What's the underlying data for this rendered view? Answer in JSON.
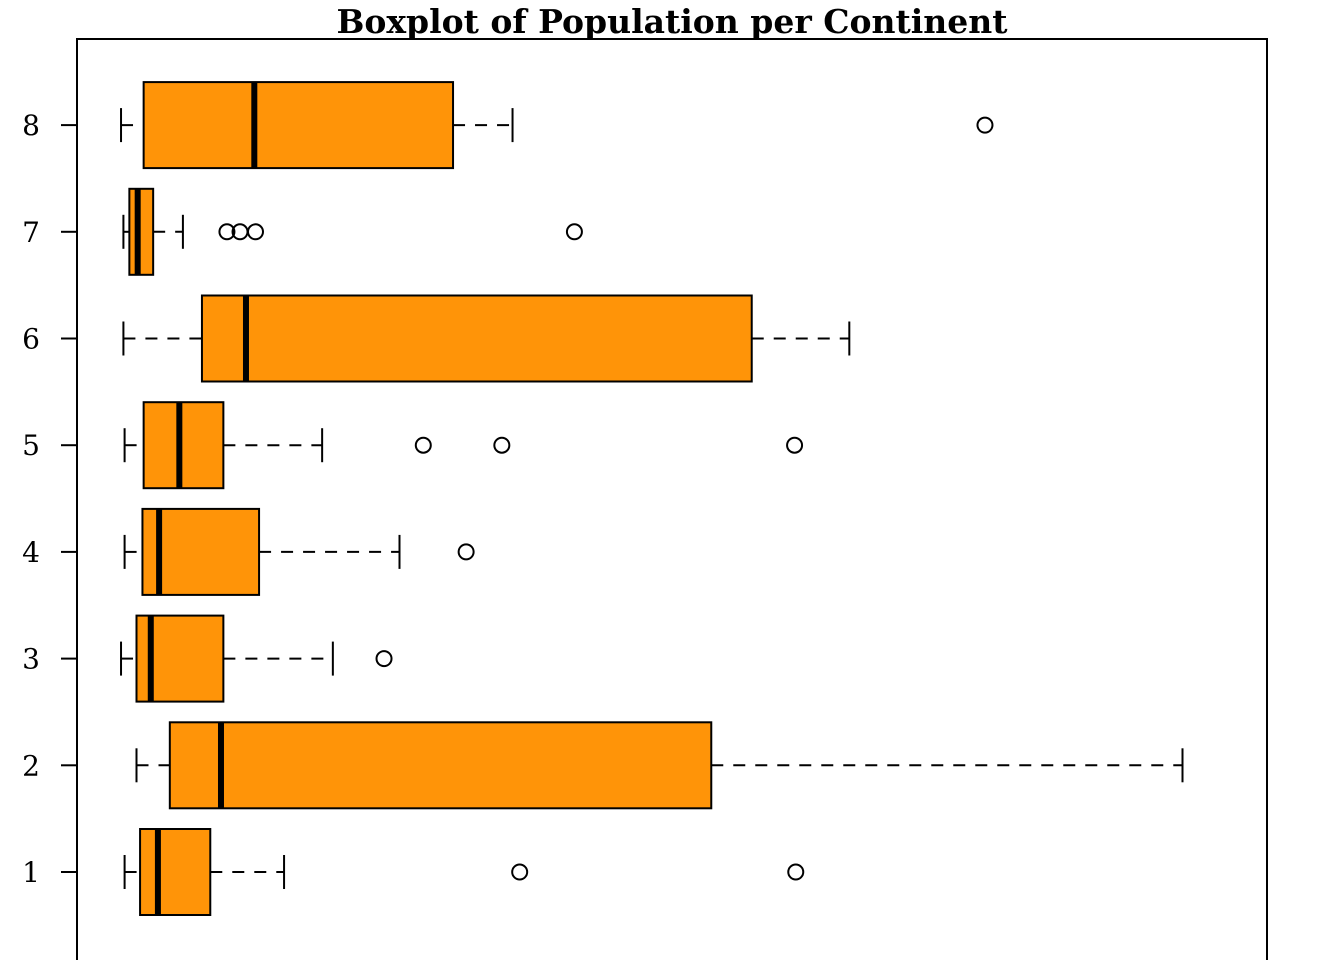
{
  "chart_data": {
    "type": "boxplot",
    "orientation": "horizontal",
    "title": "Boxplot of Population per Continent",
    "xlabel": "",
    "ylabel": "",
    "categories": [
      "1",
      "2",
      "3",
      "4",
      "5",
      "6",
      "7",
      "8"
    ],
    "xlim": [
      0,
      100
    ],
    "ylim": [
      0.4,
      9.0
    ],
    "x_axis_shown": false,
    "grid": false,
    "box_color": "#FF9408",
    "boxes": [
      {
        "category": "1",
        "whisker_low": 4.0,
        "q1": 5.3,
        "median": 6.8,
        "q3": 11.2,
        "whisker_high": 17.4,
        "outliers": [
          37.2,
          60.4
        ]
      },
      {
        "category": "2",
        "whisker_low": 5.0,
        "q1": 7.8,
        "median": 12.1,
        "q3": 53.3,
        "whisker_high": 92.9,
        "outliers": []
      },
      {
        "category": "3",
        "whisker_low": 3.7,
        "q1": 5.0,
        "median": 6.2,
        "q3": 12.3,
        "whisker_high": 21.5,
        "outliers": [
          25.8
        ]
      },
      {
        "category": "4",
        "whisker_low": 4.0,
        "q1": 5.5,
        "median": 6.9,
        "q3": 15.3,
        "whisker_high": 27.1,
        "outliers": [
          32.7
        ]
      },
      {
        "category": "5",
        "whisker_low": 4.0,
        "q1": 5.6,
        "median": 8.6,
        "q3": 12.3,
        "whisker_high": 20.6,
        "outliers": [
          29.1,
          35.7,
          60.3
        ]
      },
      {
        "category": "6",
        "whisker_low": 3.9,
        "q1": 10.5,
        "median": 14.2,
        "q3": 56.7,
        "whisker_high": 64.9,
        "outliers": []
      },
      {
        "category": "7",
        "whisker_low": 3.9,
        "q1": 4.4,
        "median": 5.1,
        "q3": 6.4,
        "whisker_high": 8.9,
        "outliers": [
          12.6,
          13.7,
          15.0,
          41.8
        ]
      },
      {
        "category": "8",
        "whisker_low": 3.7,
        "q1": 5.6,
        "median": 14.9,
        "q3": 31.6,
        "whisker_high": 36.6,
        "outliers": [
          76.3
        ]
      }
    ]
  }
}
